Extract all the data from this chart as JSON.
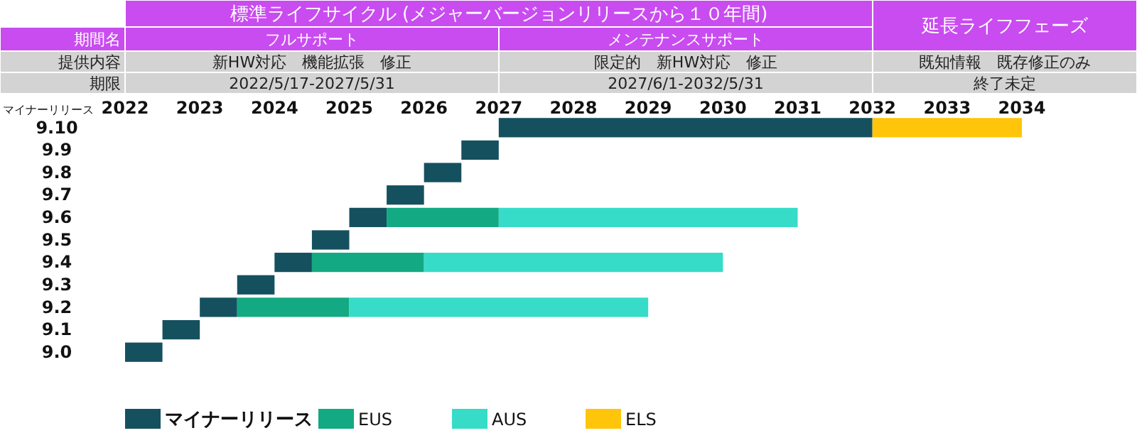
{
  "chart_data": {
    "type": "bar",
    "orientation": "horizontal",
    "ylabel": "マイナーリリース",
    "annotations": [
      "標準ライフサイクル (メジャーバージョンリリースから１０年間)",
      "延長ライフフェーズ",
      "期間名",
      "フルサポート",
      "メンテナンスサポート",
      "提供内容",
      "新HW対応　機能拡張　修正",
      "限定的　新HW対応　修正",
      "既知情報　既存修正のみ",
      "期限",
      "2022/5/17-2027/5/31",
      "2027/6/1-2032/5/31",
      "終了未定"
    ],
    "categories": [
      "9.10",
      "9.9",
      "9.8",
      "9.7",
      "9.6",
      "9.5",
      "9.4",
      "9.3",
      "9.2",
      "9.1",
      "9.0"
    ],
    "series": [
      {
        "name": "マイナーリリース",
        "color": "#15505f",
        "base": [
          2027,
          2026.5,
          2026,
          2025.5,
          2025,
          2024.5,
          2024,
          2023.5,
          2023,
          2022.5,
          2022
        ],
        "values": [
          5,
          0.5,
          0.5,
          0.5,
          0.5,
          0.5,
          0.5,
          0.5,
          0.5,
          0.5,
          0.5
        ]
      },
      {
        "name": "EUS",
        "color": "#13a983",
        "base": [
          null,
          null,
          null,
          null,
          2025.5,
          null,
          2024.5,
          null,
          2023.5,
          null,
          null
        ],
        "values": [
          null,
          null,
          null,
          null,
          1.5,
          null,
          1.5,
          null,
          1.5,
          null,
          null
        ]
      },
      {
        "name": "AUS",
        "color": "#36dcc8",
        "base": [
          null,
          null,
          null,
          null,
          2027,
          null,
          2026,
          null,
          2025,
          null,
          null
        ],
        "values": [
          null,
          null,
          null,
          null,
          4,
          null,
          4,
          null,
          4,
          null,
          null
        ]
      },
      {
        "name": "ELS",
        "color": "#ffc50a",
        "base": [
          2032,
          null,
          null,
          null,
          null,
          null,
          null,
          null,
          null,
          null,
          null
        ],
        "values": [
          2,
          null,
          null,
          null,
          null,
          null,
          null,
          null,
          null,
          null,
          null
        ]
      }
    ],
    "xlim": [
      2022,
      2034
    ],
    "xticks": [
      2022,
      2023,
      2024,
      2025,
      2026,
      2027,
      2028,
      2029,
      2030,
      2031,
      2032,
      2033,
      2034
    ],
    "legend": "bottom"
  }
}
